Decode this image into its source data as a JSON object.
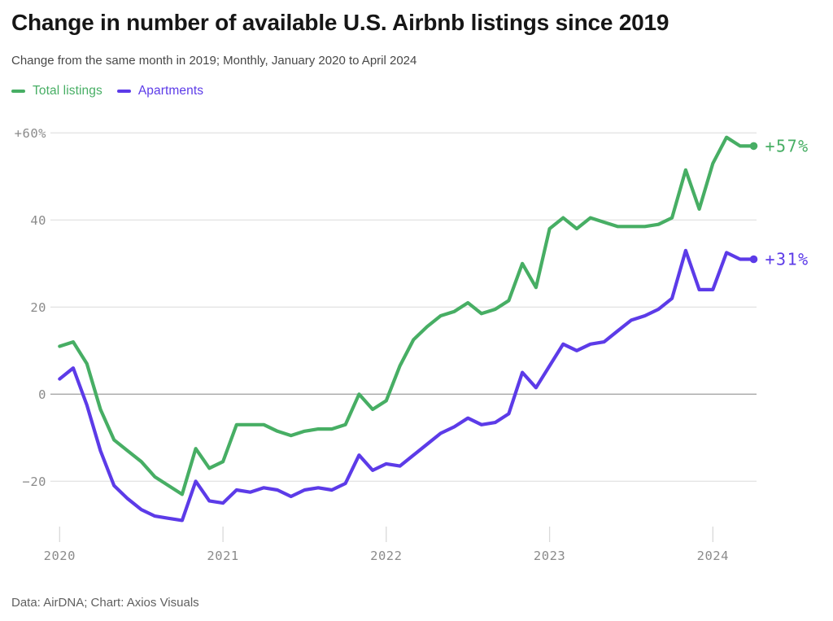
{
  "header": {
    "title": "Change in number of available U.S. Airbnb listings since 2019",
    "subtitle": "Change from the same month in 2019; Monthly, January 2020 to April 2024"
  },
  "legend": [
    {
      "label": "Total listings",
      "color": "#47AE64"
    },
    {
      "label": "Apartments",
      "color": "#5C3BE8"
    }
  ],
  "footer": {
    "source": "Data: AirDNA; Chart: Axios Visuals"
  },
  "chart_data": {
    "type": "line",
    "frequency": "monthly",
    "x_start": "2020-01",
    "x_end": "2024-04",
    "x_tick_labels": [
      "2020",
      "2021",
      "2022",
      "2023",
      "2024"
    ],
    "x_tick_month_indices": [
      0,
      12,
      24,
      36,
      48
    ],
    "y_tick_labels": [
      "+60%",
      "40",
      "20",
      "0",
      "−20"
    ],
    "y_tick_values": [
      60,
      40,
      20,
      0,
      -20
    ],
    "ylim": [
      -32,
      63
    ],
    "grid": "horizontal",
    "zero_line_color": "#a6a6a6",
    "gridline_color": "#e4e4e4",
    "tick_color": "#d9d9d9",
    "axis_text_color": "#8b8b8b",
    "legend_position": "top-left",
    "series": [
      {
        "name": "Total listings",
        "color": "#47AE64",
        "end_label": "+57%",
        "end_value": 57,
        "values": [
          11,
          12,
          7,
          -3.5,
          -10.5,
          -13,
          -15.5,
          -19,
          -21,
          -23,
          -12.5,
          -17,
          -15.5,
          -7,
          -7,
          -7,
          -8.5,
          -9.5,
          -8.5,
          -8,
          -8,
          -7,
          0,
          -3.5,
          -1.5,
          6.5,
          12.5,
          15.5,
          18,
          19,
          21,
          18.5,
          19.5,
          21.5,
          30,
          24.5,
          38,
          40.5,
          38,
          40.5,
          39.5,
          38.5,
          38.5,
          38.5,
          39,
          40.5,
          51.5,
          42.5,
          53,
          59,
          57,
          57
        ]
      },
      {
        "name": "Apartments",
        "color": "#5C3BE8",
        "end_label": "+31%",
        "end_value": 31,
        "values": [
          3.5,
          6,
          -2.5,
          -13,
          -21,
          -24,
          -26.5,
          -28,
          -28.5,
          -29,
          -20,
          -24.5,
          -25,
          -22,
          -22.5,
          -21.5,
          -22,
          -23.5,
          -22,
          -21.5,
          -22,
          -20.5,
          -14,
          -17.5,
          -16,
          -16.5,
          -14,
          -11.5,
          -9,
          -7.5,
          -5.5,
          -7,
          -6.5,
          -4.5,
          5,
          1.5,
          6.5,
          11.5,
          10,
          11.5,
          12,
          14.5,
          17,
          18,
          19.5,
          22,
          33,
          24,
          24,
          32.5,
          31,
          31
        ]
      }
    ]
  }
}
